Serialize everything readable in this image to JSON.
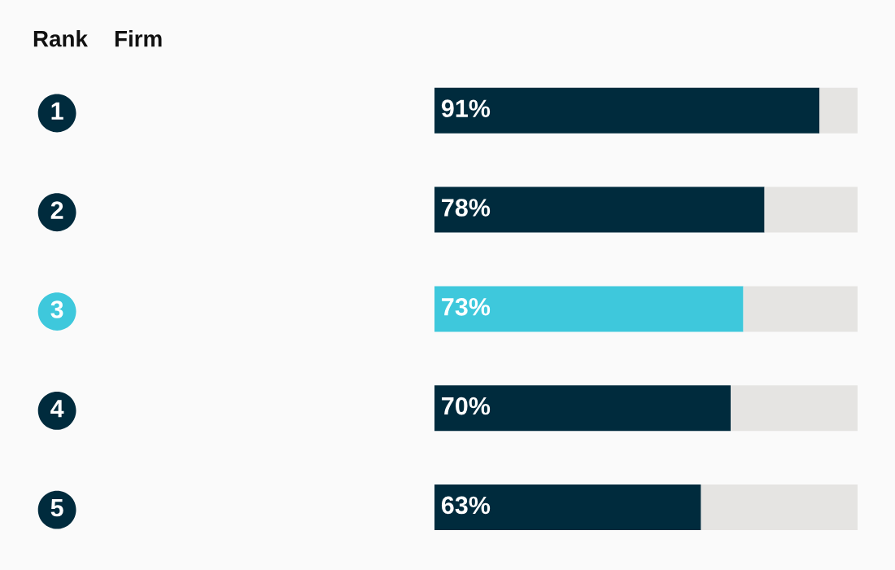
{
  "chart_data": {
    "type": "bar",
    "orientation": "horizontal",
    "stacked": true,
    "categories": [
      "1",
      "2",
      "3",
      "4",
      "5"
    ],
    "series": [
      {
        "color": "#002b3d",
        "colors": [
          "#002b3d",
          "#002b3d",
          "#3ec8dc",
          "#002b3d",
          "#002b3d"
        ],
        "values": [
          91,
          78,
          73,
          70,
          63
        ],
        "value_labels": [
          "91%",
          "78%",
          "73%",
          "70%",
          "63%"
        ]
      },
      {
        "color": "#e5e4e2",
        "values": [
          9,
          22,
          27,
          30,
          37
        ]
      }
    ],
    "xlim": [
      0,
      100
    ],
    "grid": false,
    "legend": false,
    "annotations": [
      "Rank",
      "Firm"
    ]
  }
}
